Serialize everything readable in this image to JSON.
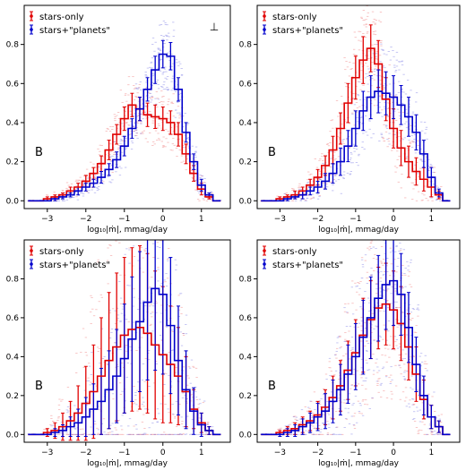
{
  "chart_data": [
    {
      "type": "line",
      "panel_label": "B",
      "corner_mark": "⊥",
      "xlabel": "log₁₀|ṁ|, mmag/day",
      "ylabel": "",
      "xlim": [
        -3.6,
        1.75
      ],
      "ylim": [
        -0.04,
        1.0
      ],
      "xticks": [
        -3,
        -2,
        -1,
        0,
        1
      ],
      "yticks": [
        0.0,
        0.2,
        0.4,
        0.6,
        0.8
      ],
      "legend_position": "top-left",
      "grid": false,
      "x": [
        -3.4,
        -3.2,
        -3.0,
        -2.8,
        -2.6,
        -2.4,
        -2.2,
        -2.0,
        -1.8,
        -1.6,
        -1.4,
        -1.2,
        -1.0,
        -0.8,
        -0.6,
        -0.4,
        -0.2,
        0.0,
        0.2,
        0.4,
        0.6,
        0.8,
        1.0,
        1.2,
        1.4
      ],
      "series": [
        {
          "name": "stars-only",
          "color": "#e00000",
          "values": [
            0.0,
            0.0,
            0.01,
            0.02,
            0.03,
            0.05,
            0.07,
            0.1,
            0.14,
            0.19,
            0.26,
            0.34,
            0.42,
            0.49,
            0.47,
            0.44,
            0.43,
            0.42,
            0.4,
            0.34,
            0.24,
            0.14,
            0.06,
            0.02,
            0.0
          ],
          "errors": [
            0.0,
            0.0,
            0.01,
            0.01,
            0.01,
            0.02,
            0.02,
            0.03,
            0.03,
            0.04,
            0.05,
            0.05,
            0.06,
            0.06,
            0.06,
            0.06,
            0.06,
            0.06,
            0.06,
            0.06,
            0.05,
            0.04,
            0.03,
            0.01,
            0.0
          ]
        },
        {
          "name": "stars+\"planets\"",
          "color": "#0000cc",
          "values": [
            0.0,
            0.0,
            0.0,
            0.01,
            0.02,
            0.03,
            0.05,
            0.07,
            0.09,
            0.12,
            0.16,
            0.21,
            0.28,
            0.37,
            0.47,
            0.57,
            0.67,
            0.75,
            0.74,
            0.57,
            0.35,
            0.2,
            0.08,
            0.03,
            0.0
          ],
          "errors": [
            0.0,
            0.0,
            0.0,
            0.01,
            0.01,
            0.01,
            0.02,
            0.02,
            0.02,
            0.03,
            0.03,
            0.04,
            0.05,
            0.05,
            0.06,
            0.06,
            0.07,
            0.07,
            0.07,
            0.06,
            0.05,
            0.04,
            0.03,
            0.01,
            0.0
          ]
        }
      ]
    },
    {
      "type": "line",
      "panel_label": "B",
      "xlabel": "log₁₀|ṁ|, mmag/day",
      "ylabel": "",
      "xlim": [
        -3.6,
        1.75
      ],
      "ylim": [
        -0.04,
        1.0
      ],
      "xticks": [
        -3,
        -2,
        -1,
        0,
        1
      ],
      "yticks": [
        0.0,
        0.2,
        0.4,
        0.6,
        0.8
      ],
      "legend_position": "top-left",
      "grid": false,
      "x": [
        -3.4,
        -3.2,
        -3.0,
        -2.8,
        -2.6,
        -2.4,
        -2.2,
        -2.0,
        -1.8,
        -1.6,
        -1.4,
        -1.2,
        -1.0,
        -0.8,
        -0.6,
        -0.4,
        -0.2,
        0.0,
        0.2,
        0.4,
        0.6,
        0.8,
        1.0,
        1.2,
        1.4
      ],
      "series": [
        {
          "name": "stars-only",
          "color": "#e00000",
          "values": [
            0.0,
            0.0,
            0.01,
            0.02,
            0.03,
            0.05,
            0.08,
            0.12,
            0.18,
            0.26,
            0.37,
            0.5,
            0.63,
            0.72,
            0.78,
            0.7,
            0.52,
            0.37,
            0.27,
            0.2,
            0.15,
            0.11,
            0.07,
            0.03,
            0.0
          ],
          "errors": [
            0.0,
            0.0,
            0.01,
            0.01,
            0.02,
            0.02,
            0.03,
            0.04,
            0.05,
            0.07,
            0.08,
            0.1,
            0.11,
            0.12,
            0.12,
            0.12,
            0.11,
            0.1,
            0.09,
            0.08,
            0.07,
            0.06,
            0.05,
            0.02,
            0.0
          ]
        },
        {
          "name": "stars+\"planets\"",
          "color": "#0000cc",
          "values": [
            0.0,
            0.0,
            0.0,
            0.01,
            0.02,
            0.03,
            0.05,
            0.07,
            0.1,
            0.14,
            0.2,
            0.28,
            0.37,
            0.46,
            0.53,
            0.56,
            0.55,
            0.53,
            0.49,
            0.43,
            0.35,
            0.24,
            0.12,
            0.04,
            0.0
          ],
          "errors": [
            0.0,
            0.0,
            0.0,
            0.01,
            0.01,
            0.02,
            0.02,
            0.03,
            0.04,
            0.05,
            0.07,
            0.08,
            0.09,
            0.1,
            0.11,
            0.11,
            0.11,
            0.11,
            0.1,
            0.1,
            0.09,
            0.07,
            0.05,
            0.02,
            0.0
          ]
        }
      ]
    },
    {
      "type": "line",
      "panel_label": "B",
      "xlabel": "log₁₀|ṁ|, mmag/day",
      "ylabel": "",
      "xlim": [
        -3.6,
        1.75
      ],
      "ylim": [
        -0.04,
        1.0
      ],
      "xticks": [
        -3,
        -2,
        -1,
        0,
        1
      ],
      "yticks": [
        0.0,
        0.2,
        0.4,
        0.6,
        0.8
      ],
      "legend_position": "top-left",
      "grid": false,
      "x": [
        -3.4,
        -3.2,
        -3.0,
        -2.8,
        -2.6,
        -2.4,
        -2.2,
        -2.0,
        -1.8,
        -1.6,
        -1.4,
        -1.2,
        -1.0,
        -0.8,
        -0.6,
        -0.4,
        -0.2,
        0.0,
        0.2,
        0.4,
        0.6,
        0.8,
        1.0,
        1.2,
        1.4
      ],
      "series": [
        {
          "name": "stars-only",
          "color": "#e00000",
          "values": [
            0.0,
            0.0,
            0.01,
            0.02,
            0.04,
            0.07,
            0.11,
            0.16,
            0.22,
            0.3,
            0.38,
            0.45,
            0.51,
            0.54,
            0.55,
            0.52,
            0.46,
            0.41,
            0.36,
            0.3,
            0.22,
            0.13,
            0.06,
            0.02,
            0.0
          ],
          "errors": [
            0.0,
            0.0,
            0.02,
            0.04,
            0.07,
            0.1,
            0.14,
            0.19,
            0.24,
            0.3,
            0.35,
            0.38,
            0.4,
            0.42,
            0.42,
            0.41,
            0.38,
            0.35,
            0.3,
            0.25,
            0.18,
            0.1,
            0.05,
            0.02,
            0.0
          ]
        },
        {
          "name": "stars+\"planets\"",
          "color": "#0000cc",
          "values": [
            0.0,
            0.0,
            0.0,
            0.01,
            0.02,
            0.04,
            0.06,
            0.09,
            0.13,
            0.17,
            0.23,
            0.3,
            0.39,
            0.49,
            0.58,
            0.68,
            0.75,
            0.72,
            0.56,
            0.38,
            0.23,
            0.12,
            0.05,
            0.02,
            0.0
          ],
          "errors": [
            0.0,
            0.0,
            0.0,
            0.02,
            0.03,
            0.05,
            0.07,
            0.1,
            0.13,
            0.17,
            0.2,
            0.24,
            0.28,
            0.32,
            0.36,
            0.4,
            0.42,
            0.41,
            0.35,
            0.28,
            0.2,
            0.12,
            0.06,
            0.02,
            0.0
          ]
        }
      ]
    },
    {
      "type": "line",
      "panel_label": "B",
      "xlabel": "log₁₀|ṁ|, mmag/day",
      "ylabel": "",
      "xlim": [
        -3.6,
        1.75
      ],
      "ylim": [
        -0.04,
        1.0
      ],
      "xticks": [
        -3,
        -2,
        -1,
        0,
        1
      ],
      "yticks": [
        0.0,
        0.2,
        0.4,
        0.6,
        0.8
      ],
      "legend_position": "top-left",
      "grid": false,
      "x": [
        -3.4,
        -3.2,
        -3.0,
        -2.8,
        -2.6,
        -2.4,
        -2.2,
        -2.0,
        -1.8,
        -1.6,
        -1.4,
        -1.2,
        -1.0,
        -0.8,
        -0.6,
        -0.4,
        -0.2,
        0.0,
        0.2,
        0.4,
        0.6,
        0.8,
        1.0,
        1.2,
        1.4
      ],
      "series": [
        {
          "name": "stars-only",
          "color": "#e00000",
          "values": [
            0.0,
            0.0,
            0.01,
            0.02,
            0.03,
            0.05,
            0.07,
            0.1,
            0.14,
            0.19,
            0.25,
            0.33,
            0.42,
            0.51,
            0.59,
            0.65,
            0.67,
            0.64,
            0.57,
            0.45,
            0.31,
            0.18,
            0.09,
            0.04,
            0.0
          ],
          "errors": [
            0.0,
            0.0,
            0.01,
            0.02,
            0.03,
            0.04,
            0.05,
            0.07,
            0.09,
            0.11,
            0.13,
            0.15,
            0.17,
            0.19,
            0.2,
            0.21,
            0.21,
            0.2,
            0.19,
            0.17,
            0.14,
            0.1,
            0.06,
            0.03,
            0.0
          ]
        },
        {
          "name": "stars+\"planets\"",
          "color": "#0000cc",
          "values": [
            0.0,
            0.0,
            0.0,
            0.01,
            0.02,
            0.04,
            0.06,
            0.09,
            0.12,
            0.17,
            0.23,
            0.31,
            0.4,
            0.5,
            0.6,
            0.7,
            0.77,
            0.79,
            0.72,
            0.55,
            0.36,
            0.2,
            0.09,
            0.04,
            0.0
          ],
          "errors": [
            0.0,
            0.0,
            0.01,
            0.02,
            0.03,
            0.04,
            0.05,
            0.07,
            0.09,
            0.11,
            0.13,
            0.15,
            0.17,
            0.19,
            0.21,
            0.22,
            0.23,
            0.23,
            0.21,
            0.18,
            0.14,
            0.1,
            0.06,
            0.03,
            0.0
          ]
        }
      ]
    }
  ]
}
